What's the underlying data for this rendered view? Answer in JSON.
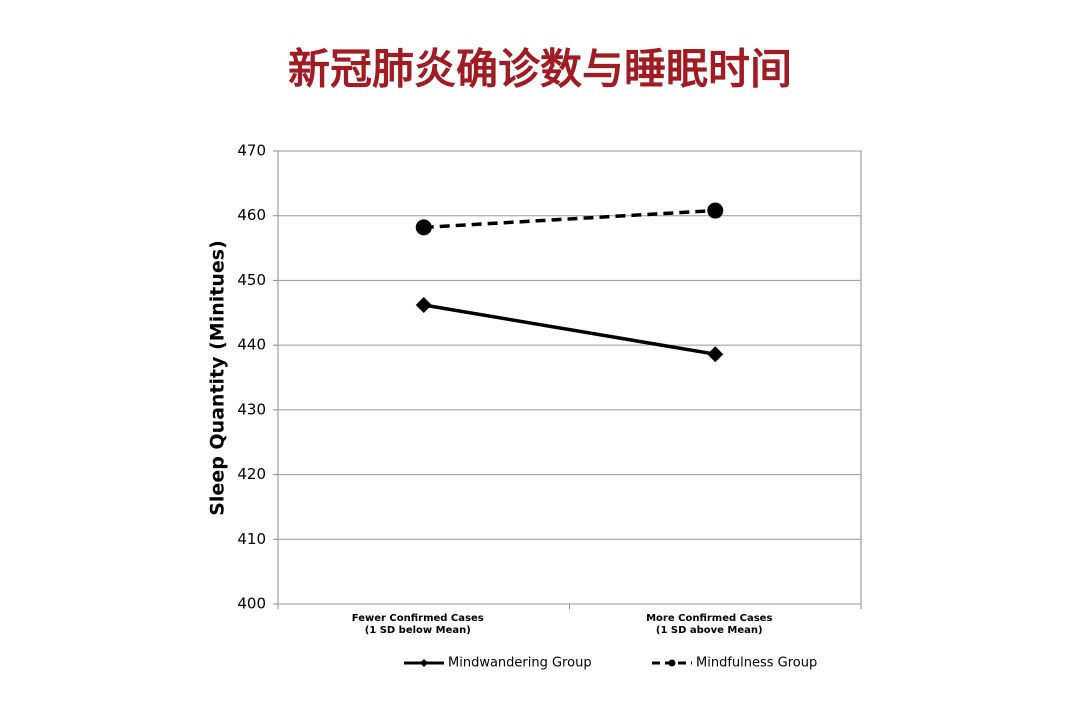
{
  "chart_data": {
    "type": "line",
    "title": "新冠肺炎确诊数与睡眠时间",
    "y_label": "Sleep Quantity (Minitues)",
    "categories": [
      [
        "Fewer Confirmed Cases",
        "(1 SD below Mean)"
      ],
      [
        "More Confirmed Cases",
        "(1 SD above Mean)"
      ]
    ],
    "series": [
      {
        "name": "Mindwandering Group",
        "color": "#000000",
        "marker": "diamond",
        "line_style": "solid",
        "values": [
          446.2,
          438.6
        ]
      },
      {
        "name": "Mindfulness Group",
        "color": "#000000",
        "marker": "circle",
        "line_style": "dashed",
        "values": [
          458.2,
          460.8
        ]
      }
    ],
    "ylim": [
      400,
      470
    ],
    "yticks": [
      400,
      410,
      420,
      430,
      440,
      450,
      460,
      470
    ],
    "grid": true,
    "legend": "bottom"
  }
}
